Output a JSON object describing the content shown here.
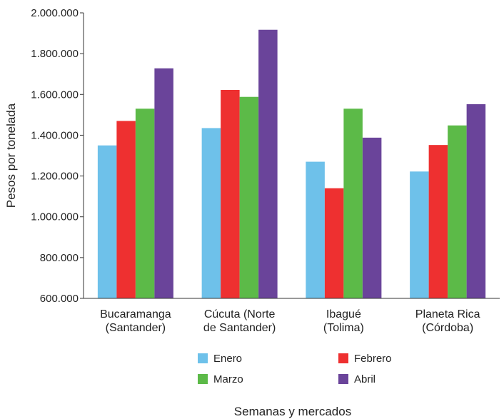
{
  "chart_data": {
    "type": "bar",
    "xlabel": "Semanas y mercados",
    "ylabel": "Pesos por tonelada",
    "ylim": [
      600000,
      2000000
    ],
    "yticks": [
      600000,
      800000,
      1000000,
      1200000,
      1400000,
      1600000,
      1800000,
      2000000
    ],
    "ytick_labels": [
      "600.000",
      "800.000",
      "1.000.000",
      "1.200.000",
      "1.400.000",
      "1.600.000",
      "1.800.000",
      "2.000.000"
    ],
    "categories": [
      [
        "Bucaramanga",
        "(Santander)"
      ],
      [
        "Cúcuta (Norte",
        "de Santander)"
      ],
      [
        "Ibagué",
        "(Tolima)"
      ],
      [
        "Planeta Rica",
        "(Córdoba)"
      ]
    ],
    "series": [
      {
        "name": "Enero",
        "color": "#6ec1ea",
        "values": [
          1350000,
          1435000,
          1270000,
          1222000
        ]
      },
      {
        "name": "Febrero",
        "color": "#ee3030",
        "values": [
          1470000,
          1622000,
          1140000,
          1352000
        ]
      },
      {
        "name": "Marzo",
        "color": "#5cba48",
        "values": [
          1530000,
          1588000,
          1530000,
          1448000
        ]
      },
      {
        "name": "Abril",
        "color": "#6a449a",
        "values": [
          1728000,
          1917000,
          1388000,
          1552000
        ]
      }
    ],
    "grid": false,
    "legend_position": "bottom"
  }
}
